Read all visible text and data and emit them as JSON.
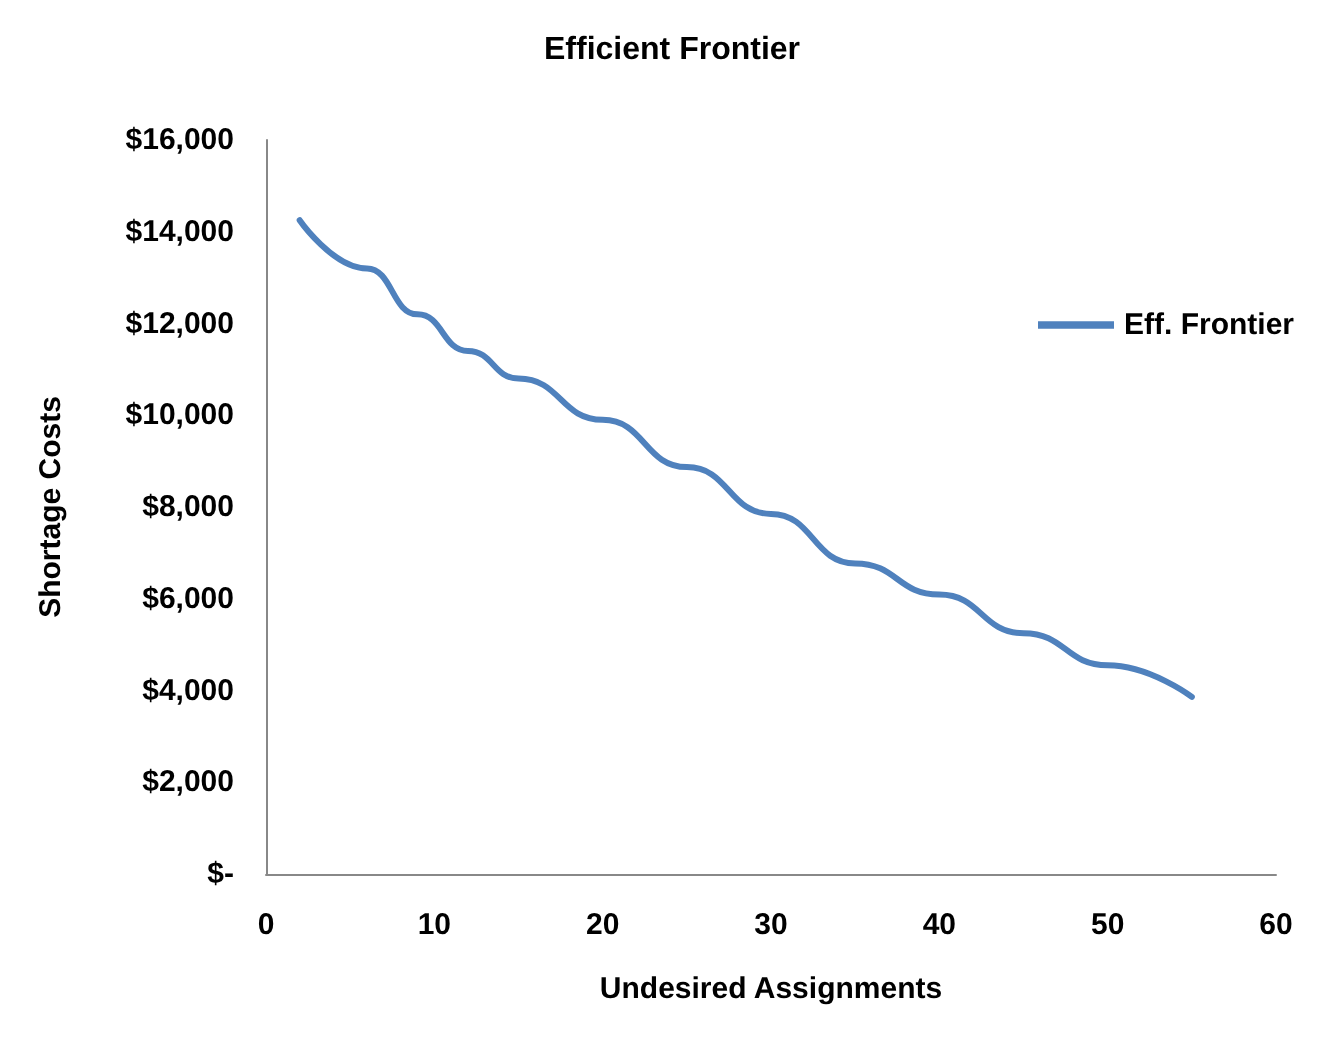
{
  "chart_data": {
    "type": "line",
    "title": "Efficient Frontier",
    "xlabel": "Undesired Assignments",
    "ylabel": "Shortage Costs",
    "x": [
      2,
      6,
      9,
      12,
      15,
      20,
      25,
      30,
      35,
      40,
      45,
      50,
      55
    ],
    "series": [
      {
        "name": "Eff. Frontier",
        "color": "#4f81bd",
        "values": [
          14250,
          13200,
          12200,
          11400,
          10800,
          9900,
          8870,
          7850,
          6770,
          6090,
          5250,
          4550,
          3860
        ]
      }
    ],
    "xlim": [
      0,
      60
    ],
    "xticks": [
      0,
      10,
      20,
      30,
      40,
      50,
      60
    ],
    "ylim": [
      0,
      16000
    ],
    "yticks": [
      {
        "value": 0,
        "label": "$-"
      },
      {
        "value": 2000,
        "label": "$2,000"
      },
      {
        "value": 4000,
        "label": "$4,000"
      },
      {
        "value": 6000,
        "label": "$6,000"
      },
      {
        "value": 8000,
        "label": "$8,000"
      },
      {
        "value": 10000,
        "label": "$10,000"
      },
      {
        "value": 12000,
        "label": "$12,000"
      },
      {
        "value": 14000,
        "label": "$14,000"
      },
      {
        "value": 16000,
        "label": "$16,000"
      }
    ],
    "grid": false,
    "legend": "right",
    "marker": "none"
  }
}
